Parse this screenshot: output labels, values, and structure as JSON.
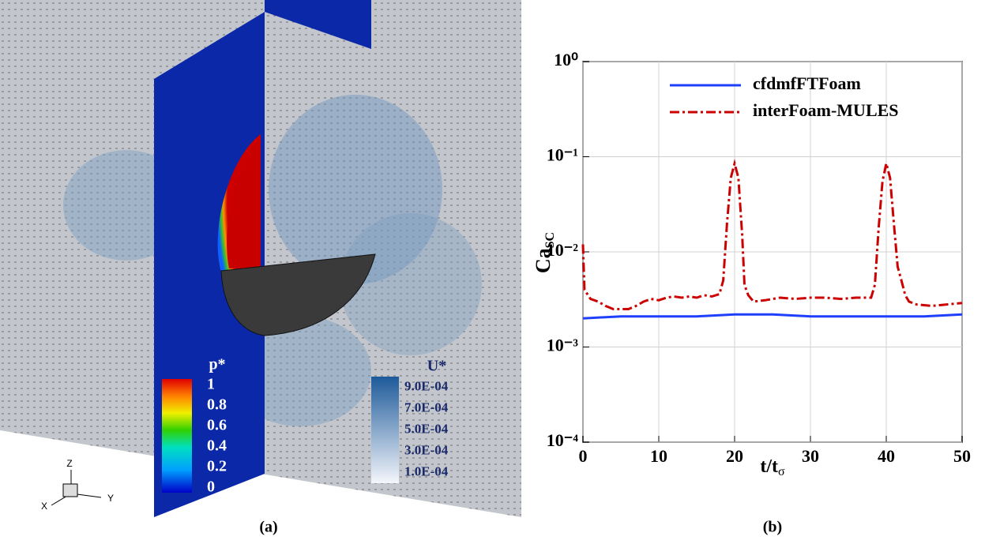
{
  "panel_a": {
    "p_colorbar": {
      "title": "p*",
      "vlim": [
        0,
        1
      ],
      "ticks": [
        1,
        0.8,
        0.6,
        0.4,
        0.2,
        0
      ]
    },
    "u_colorbar": {
      "title": "U*",
      "vlim": [
        0,
        0.001
      ],
      "ticks": [
        {
          "value": 0.0009,
          "label": "9.0E-04"
        },
        {
          "value": 0.0007,
          "label": "7.0E-04"
        },
        {
          "value": 0.0005,
          "label": "5.0E-04"
        },
        {
          "value": 0.0003,
          "label": "3.0E-04"
        },
        {
          "value": 0.0001,
          "label": "1.0E-04"
        }
      ]
    },
    "axes_triad": [
      "Z",
      "X",
      "Y"
    ],
    "caption": "(a)"
  },
  "chart_data": {
    "type": "line",
    "caption": "(b)",
    "xlabel": "t/t",
    "xlabel_sub": "σ",
    "ylabel": "Ca",
    "ylabel_sub": "SC",
    "xlim": [
      0,
      50
    ],
    "xticks": [
      0,
      10,
      20,
      30,
      40,
      50
    ],
    "ylim": [
      0.0001,
      1
    ],
    "log_y": true,
    "grid": true,
    "legend": "upper center",
    "yticks": [
      {
        "value": 0.0001,
        "label": "10⁻⁴"
      },
      {
        "value": 0.001,
        "label": "10⁻³"
      },
      {
        "value": 0.01,
        "label": "10⁻²"
      },
      {
        "value": 0.1,
        "label": "10⁻¹"
      },
      {
        "value": 1,
        "label": "10⁰"
      }
    ],
    "series": [
      {
        "name": "cfdmfFTFoam",
        "color": "#1f3fff",
        "dash": "solid",
        "x": [
          0,
          5,
          10,
          15,
          20,
          25,
          30,
          35,
          40,
          45,
          50
        ],
        "values": [
          0.002,
          0.0021,
          0.0021,
          0.0021,
          0.0022,
          0.0022,
          0.0021,
          0.0021,
          0.0021,
          0.0021,
          0.0022
        ]
      },
      {
        "name": "interFoam-MULES",
        "color": "#cc0000",
        "dash": "dashdot",
        "x": [
          0,
          0.2,
          1,
          2,
          3,
          4,
          5,
          6,
          7,
          8,
          9,
          10,
          11,
          12,
          13,
          14,
          15,
          16,
          17,
          18,
          18.5,
          19,
          19.5,
          20,
          20.5,
          21,
          21.3,
          21.8,
          22.5,
          24,
          26,
          28,
          30,
          32,
          34,
          36,
          38,
          38.5,
          39,
          39.5,
          40,
          40.5,
          41,
          41.5,
          42,
          42.5,
          43,
          44,
          46,
          48,
          50
        ],
        "values": [
          0.012,
          0.004,
          0.0032,
          0.003,
          0.0027,
          0.0025,
          0.0025,
          0.0025,
          0.0027,
          0.003,
          0.0032,
          0.0031,
          0.0033,
          0.0034,
          0.0033,
          0.0034,
          0.0033,
          0.0035,
          0.0034,
          0.0036,
          0.005,
          0.02,
          0.06,
          0.085,
          0.06,
          0.015,
          0.0045,
          0.0035,
          0.003,
          0.0031,
          0.0033,
          0.0032,
          0.0033,
          0.0033,
          0.0032,
          0.0033,
          0.0033,
          0.0045,
          0.018,
          0.055,
          0.085,
          0.06,
          0.02,
          0.007,
          0.005,
          0.0035,
          0.003,
          0.0028,
          0.0027,
          0.0028,
          0.0029
        ]
      }
    ]
  }
}
